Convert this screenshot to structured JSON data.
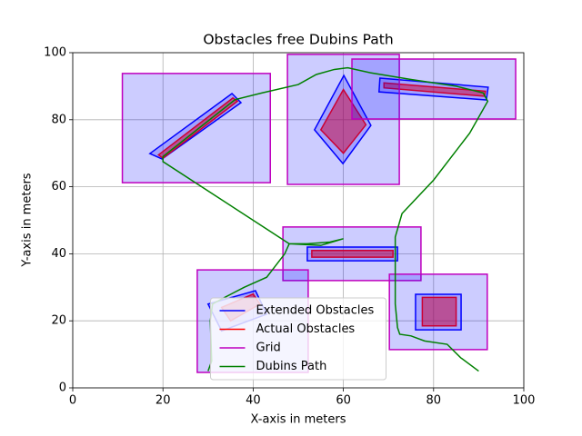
{
  "chart_data": {
    "type": "polygon",
    "title": "Obstacles free Dubins Path",
    "xlabel": "X-axis in meters",
    "ylabel": "Y-axis in meters",
    "xlim": [
      0,
      100
    ],
    "ylim": [
      0,
      100
    ],
    "xticks": [
      0,
      20,
      40,
      60,
      80,
      100
    ],
    "yticks": [
      0,
      20,
      40,
      60,
      80,
      100
    ],
    "grid": true,
    "legend": "lower center",
    "series": [
      {
        "name": "Extended Obstacles",
        "color": "#0000ff",
        "fill": "#0000ff",
        "fill_alpha": 0.2,
        "shapes": [
          {
            "x": [
              17.1,
              35.3,
              37.3,
              19.8
            ],
            "y": [
              69.9,
              87.8,
              85.1,
              68.3
            ]
          },
          {
            "x": [
              60.1,
              53.6,
              59.9,
              66.1
            ],
            "y": [
              93.2,
              77,
              66.9,
              78.3
            ]
          },
          {
            "x": [
              68.1,
              92.1,
              91.7,
              67.9
            ],
            "y": [
              92.4,
              89.7,
              85.9,
              88.3
            ]
          },
          {
            "x": [
              52,
              72,
              72,
              52
            ],
            "y": [
              42,
              42,
              37.9,
              37.9
            ]
          },
          {
            "x": [
              30,
              40.5,
              43,
              33
            ],
            "y": [
              25,
              29,
              22,
              17
            ]
          },
          {
            "x": [
              76,
              86.1,
              86.1,
              76
            ],
            "y": [
              27.9,
              27.9,
              17.3,
              17.3
            ]
          }
        ]
      },
      {
        "name": "Actual Obstacles",
        "color": "#ff0000",
        "fill": "#ff0000",
        "fill_alpha": 0.5,
        "shapes": [
          {
            "x": [
              19,
              35.5,
              36.5,
              20
            ],
            "y": [
              69.5,
              86.5,
              85.5,
              68.5
            ]
          },
          {
            "x": [
              60,
              55,
              60,
              65
            ],
            "y": [
              89,
              77,
              70,
              78.5
            ]
          },
          {
            "x": [
              69,
              91.5,
              91.3,
              69
            ],
            "y": [
              91,
              88.5,
              87,
              89.5
            ]
          },
          {
            "x": [
              53,
              71,
              71,
              53
            ],
            "y": [
              41,
              41,
              39,
              39
            ]
          },
          {
            "x": [
              33,
              40,
              41.5,
              35
            ],
            "y": [
              24,
              28,
              25,
              20
            ]
          },
          {
            "x": [
              77.5,
              85,
              85,
              77.5
            ],
            "y": [
              27,
              27,
              18.5,
              18.5
            ]
          }
        ]
      },
      {
        "name": "Grid",
        "color": "#bf00bf",
        "fill": "#0000ff",
        "fill_alpha": 0.2,
        "shapes": [
          {
            "x": [
              11,
              43.8,
              43.8,
              11
            ],
            "y": [
              93.8,
              93.8,
              61.2,
              61.2
            ]
          },
          {
            "x": [
              47.6,
              72.4,
              72.4,
              47.6
            ],
            "y": [
              99.5,
              99.5,
              60.7,
              60.7
            ]
          },
          {
            "x": [
              61.9,
              98.2,
              98.2,
              61.9
            ],
            "y": [
              98.1,
              98.1,
              80.2,
              80.2
            ]
          },
          {
            "x": [
              46.6,
              77.2,
              77.2,
              46.6
            ],
            "y": [
              48,
              48,
              32,
              32
            ]
          },
          {
            "x": [
              27.6,
              52.2,
              52.2,
              27.6
            ],
            "y": [
              35.2,
              35.2,
              4.6,
              4.6
            ]
          },
          {
            "x": [
              70.2,
              91.9,
              91.9,
              70.2
            ],
            "y": [
              33.9,
              33.9,
              11.4,
              11.4
            ]
          }
        ]
      },
      {
        "name": "Dubins Path",
        "color": "#008000",
        "x": [
          90,
          86,
          83,
          78,
          75,
          72.5,
          72,
          71.5,
          71.5,
          73,
          80,
          88,
          92,
          91,
          85,
          75,
          66,
          61,
          58,
          54,
          50,
          42,
          36,
          20,
          20,
          48,
          52,
          57,
          60,
          55,
          48,
          47,
          43,
          38,
          33,
          31,
          30.5,
          30.8,
          30
        ],
        "y": [
          5,
          9,
          13,
          14,
          15.5,
          16,
          18,
          25,
          45,
          52,
          62,
          76,
          85.5,
          88,
          90,
          92,
          94,
          95.5,
          95,
          93.5,
          90.5,
          88,
          86,
          69,
          67.5,
          43,
          43,
          43.5,
          44.5,
          42.5,
          43,
          40,
          33,
          30,
          26.5,
          25,
          20,
          8,
          5
        ]
      }
    ]
  }
}
